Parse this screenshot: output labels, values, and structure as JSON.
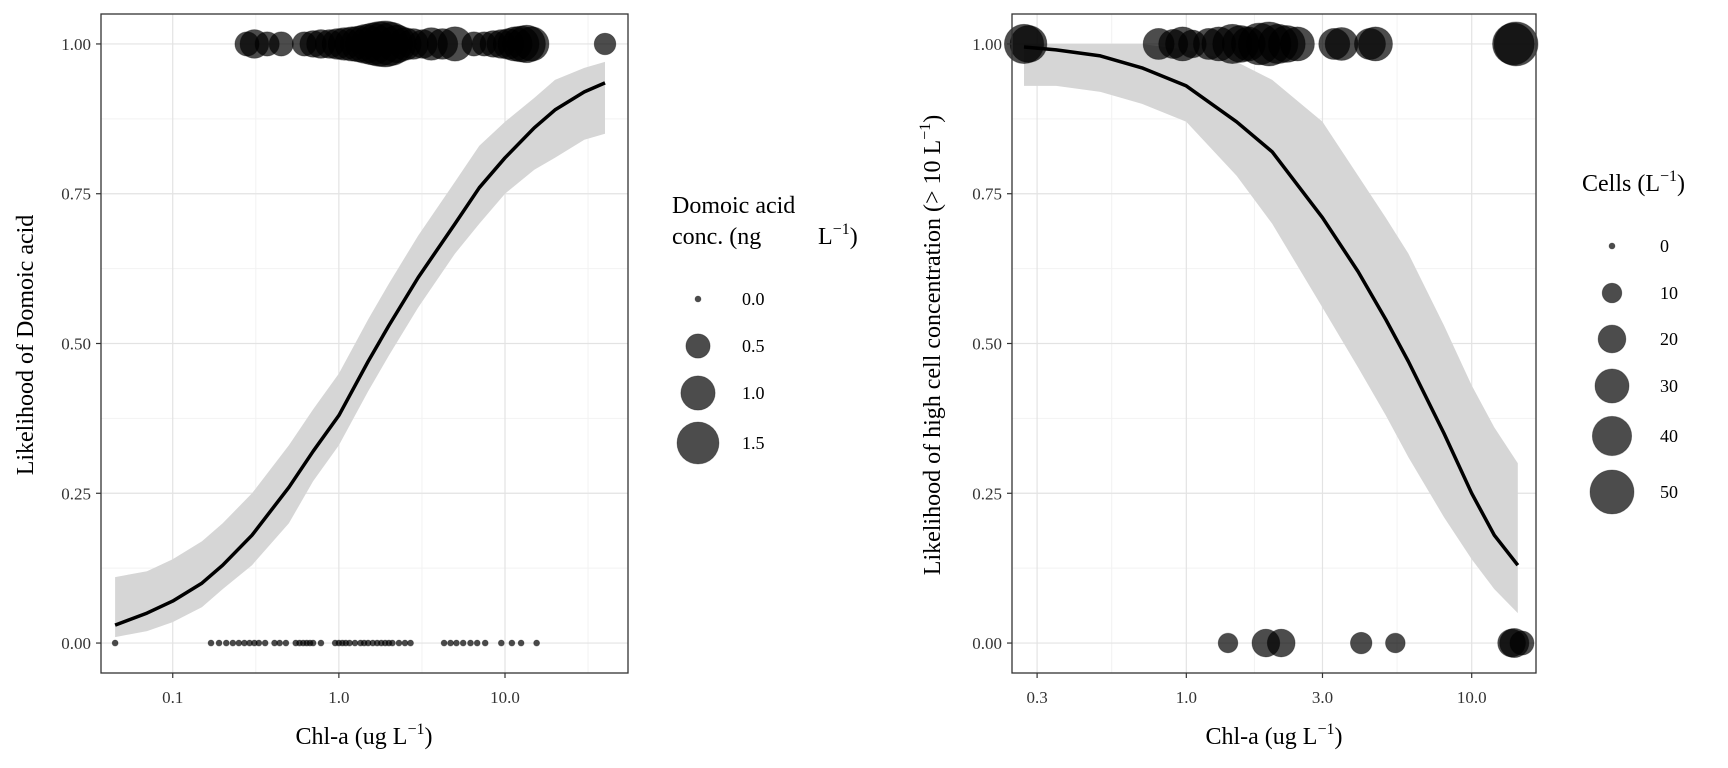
{
  "chart_data": [
    {
      "type": "scatter",
      "title": "",
      "xlabel": "Chl-a (ug L",
      "xlabel_sup": "−1",
      "xlabel_close": ")",
      "ylabel": "Likelihood of Domoic acid",
      "x_scale": "log10",
      "xlim": [
        0.037,
        55
      ],
      "ylim": [
        -0.05,
        1.05
      ],
      "x_ticks": [
        {
          "value": 0.1,
          "label": "0.1"
        },
        {
          "value": 1.0,
          "label": "1.0"
        },
        {
          "value": 10.0,
          "label": "10.0"
        }
      ],
      "y_ticks": [
        {
          "value": 0.0,
          "label": "0.00"
        },
        {
          "value": 0.25,
          "label": "0.25"
        },
        {
          "value": 0.5,
          "label": "0.50"
        },
        {
          "value": 0.75,
          "label": "0.75"
        },
        {
          "value": 1.0,
          "label": "1.00"
        }
      ],
      "grid": true,
      "fit_curve": {
        "x": [
          0.045,
          0.07,
          0.1,
          0.15,
          0.2,
          0.3,
          0.5,
          0.7,
          1.0,
          1.5,
          2.0,
          3.0,
          5.0,
          7.0,
          10.0,
          15.0,
          20.0,
          30.0,
          40.0
        ],
        "y": [
          0.03,
          0.05,
          0.07,
          0.1,
          0.13,
          0.18,
          0.26,
          0.32,
          0.38,
          0.47,
          0.53,
          0.61,
          0.7,
          0.76,
          0.81,
          0.86,
          0.89,
          0.92,
          0.935
        ],
        "lower": [
          0.01,
          0.02,
          0.035,
          0.06,
          0.09,
          0.13,
          0.2,
          0.27,
          0.33,
          0.42,
          0.48,
          0.56,
          0.65,
          0.7,
          0.75,
          0.79,
          0.81,
          0.84,
          0.85
        ],
        "upper": [
          0.11,
          0.12,
          0.14,
          0.17,
          0.2,
          0.25,
          0.33,
          0.39,
          0.45,
          0.54,
          0.6,
          0.68,
          0.77,
          0.83,
          0.87,
          0.91,
          0.94,
          0.96,
          0.97
        ]
      },
      "points": [
        {
          "x": 0.28,
          "y": 1,
          "size": 0.5
        },
        {
          "x": 0.31,
          "y": 1,
          "size": 0.7
        },
        {
          "x": 0.37,
          "y": 1,
          "size": 0.5
        },
        {
          "x": 0.45,
          "y": 1,
          "size": 0.5
        },
        {
          "x": 0.62,
          "y": 1,
          "size": 0.5
        },
        {
          "x": 0.7,
          "y": 1,
          "size": 0.6
        },
        {
          "x": 0.78,
          "y": 1,
          "size": 0.7
        },
        {
          "x": 0.88,
          "y": 1,
          "size": 0.7
        },
        {
          "x": 0.98,
          "y": 1,
          "size": 0.8
        },
        {
          "x": 1.08,
          "y": 1,
          "size": 0.9
        },
        {
          "x": 1.2,
          "y": 1,
          "size": 1.0
        },
        {
          "x": 1.32,
          "y": 1,
          "size": 1.1
        },
        {
          "x": 1.45,
          "y": 1,
          "size": 1.3
        },
        {
          "x": 1.6,
          "y": 1,
          "size": 1.5
        },
        {
          "x": 1.75,
          "y": 1,
          "size": 1.7
        },
        {
          "x": 1.9,
          "y": 1,
          "size": 1.8
        },
        {
          "x": 2.05,
          "y": 1,
          "size": 1.6
        },
        {
          "x": 2.25,
          "y": 1,
          "size": 1.2
        },
        {
          "x": 2.5,
          "y": 1,
          "size": 0.9
        },
        {
          "x": 2.8,
          "y": 1,
          "size": 0.8
        },
        {
          "x": 3.2,
          "y": 1,
          "size": 0.7
        },
        {
          "x": 3.6,
          "y": 1,
          "size": 0.9
        },
        {
          "x": 4.2,
          "y": 1,
          "size": 0.8
        },
        {
          "x": 5.0,
          "y": 1,
          "size": 1.0
        },
        {
          "x": 6.5,
          "y": 1,
          "size": 0.5
        },
        {
          "x": 7.5,
          "y": 1,
          "size": 0.5
        },
        {
          "x": 8.5,
          "y": 1,
          "size": 0.6
        },
        {
          "x": 9.5,
          "y": 1,
          "size": 0.7
        },
        {
          "x": 10.5,
          "y": 1,
          "size": 0.8
        },
        {
          "x": 11.5,
          "y": 1,
          "size": 1.0
        },
        {
          "x": 12.5,
          "y": 1,
          "size": 1.1
        },
        {
          "x": 13.5,
          "y": 1,
          "size": 1.2
        },
        {
          "x": 14.5,
          "y": 1,
          "size": 1.0
        },
        {
          "x": 40.0,
          "y": 1,
          "size": 0.4
        },
        {
          "x": 0.045,
          "y": 0,
          "size": 0
        },
        {
          "x": 0.17,
          "y": 0,
          "size": 0
        },
        {
          "x": 0.19,
          "y": 0,
          "size": 0
        },
        {
          "x": 0.21,
          "y": 0,
          "size": 0
        },
        {
          "x": 0.23,
          "y": 0,
          "size": 0
        },
        {
          "x": 0.25,
          "y": 0,
          "size": 0
        },
        {
          "x": 0.27,
          "y": 0,
          "size": 0
        },
        {
          "x": 0.29,
          "y": 0,
          "size": 0
        },
        {
          "x": 0.31,
          "y": 0,
          "size": 0
        },
        {
          "x": 0.33,
          "y": 0,
          "size": 0
        },
        {
          "x": 0.36,
          "y": 0,
          "size": 0
        },
        {
          "x": 0.41,
          "y": 0,
          "size": 0
        },
        {
          "x": 0.44,
          "y": 0,
          "size": 0
        },
        {
          "x": 0.48,
          "y": 0,
          "size": 0
        },
        {
          "x": 0.55,
          "y": 0,
          "size": 0
        },
        {
          "x": 0.58,
          "y": 0,
          "size": 0
        },
        {
          "x": 0.61,
          "y": 0,
          "size": 0
        },
        {
          "x": 0.64,
          "y": 0,
          "size": 0
        },
        {
          "x": 0.67,
          "y": 0,
          "size": 0
        },
        {
          "x": 0.7,
          "y": 0,
          "size": 0
        },
        {
          "x": 0.78,
          "y": 0,
          "size": 0
        },
        {
          "x": 0.95,
          "y": 0,
          "size": 0
        },
        {
          "x": 1.0,
          "y": 0,
          "size": 0
        },
        {
          "x": 1.05,
          "y": 0,
          "size": 0
        },
        {
          "x": 1.1,
          "y": 0,
          "size": 0
        },
        {
          "x": 1.16,
          "y": 0,
          "size": 0
        },
        {
          "x": 1.25,
          "y": 0,
          "size": 0
        },
        {
          "x": 1.35,
          "y": 0,
          "size": 0
        },
        {
          "x": 1.42,
          "y": 0,
          "size": 0
        },
        {
          "x": 1.5,
          "y": 0,
          "size": 0
        },
        {
          "x": 1.6,
          "y": 0,
          "size": 0
        },
        {
          "x": 1.7,
          "y": 0,
          "size": 0
        },
        {
          "x": 1.8,
          "y": 0,
          "size": 0
        },
        {
          "x": 1.9,
          "y": 0,
          "size": 0
        },
        {
          "x": 2.0,
          "y": 0,
          "size": 0
        },
        {
          "x": 2.1,
          "y": 0,
          "size": 0
        },
        {
          "x": 2.3,
          "y": 0,
          "size": 0
        },
        {
          "x": 2.5,
          "y": 0,
          "size": 0
        },
        {
          "x": 2.7,
          "y": 0,
          "size": 0
        },
        {
          "x": 4.3,
          "y": 0,
          "size": 0
        },
        {
          "x": 4.7,
          "y": 0,
          "size": 0
        },
        {
          "x": 5.1,
          "y": 0,
          "size": 0
        },
        {
          "x": 5.6,
          "y": 0,
          "size": 0
        },
        {
          "x": 6.2,
          "y": 0,
          "size": 0
        },
        {
          "x": 6.8,
          "y": 0,
          "size": 0
        },
        {
          "x": 7.6,
          "y": 0,
          "size": 0
        },
        {
          "x": 9.5,
          "y": 0,
          "size": 0
        },
        {
          "x": 11.0,
          "y": 0,
          "size": 0
        },
        {
          "x": 12.5,
          "y": 0,
          "size": 0
        },
        {
          "x": 15.5,
          "y": 0,
          "size": 0
        }
      ],
      "legend": {
        "title_lines": [
          "Domoic acid",
          "conc. (ng"
        ],
        "title_unit": "L",
        "title_unit_sup": "−1",
        "title_unit_close": ")",
        "entries": [
          {
            "label": "0.0",
            "value": 0.0
          },
          {
            "label": "0.5",
            "value": 0.5
          },
          {
            "label": "1.0",
            "value": 1.0
          },
          {
            "label": "1.5",
            "value": 1.5
          }
        ],
        "placement": "right"
      }
    },
    {
      "type": "scatter",
      "title": "",
      "xlabel": "Chl-a (ug L",
      "xlabel_sup": "−1",
      "xlabel_close": ")",
      "ylabel": "Likelihood of high cell concentration (> 10 L",
      "ylabel_sup": "−1",
      "ylabel_close": ")",
      "x_scale": "log10",
      "xlim": [
        0.245,
        16.8
      ],
      "ylim": [
        -0.05,
        1.05
      ],
      "x_ticks": [
        {
          "value": 0.3,
          "label": "0.3"
        },
        {
          "value": 1.0,
          "label": "1.0"
        },
        {
          "value": 3.0,
          "label": "3.0"
        },
        {
          "value": 10.0,
          "label": "10.0"
        }
      ],
      "y_ticks": [
        {
          "value": 0.0,
          "label": "0.00"
        },
        {
          "value": 0.25,
          "label": "0.25"
        },
        {
          "value": 0.5,
          "label": "0.50"
        },
        {
          "value": 0.75,
          "label": "0.75"
        },
        {
          "value": 1.0,
          "label": "1.00"
        }
      ],
      "grid": true,
      "fit_curve": {
        "x": [
          0.27,
          0.35,
          0.5,
          0.7,
          1.0,
          1.5,
          2.0,
          3.0,
          4.0,
          5.0,
          6.0,
          8.0,
          10.0,
          12.0,
          14.5
        ],
        "y": [
          0.995,
          0.99,
          0.98,
          0.96,
          0.93,
          0.87,
          0.82,
          0.71,
          0.62,
          0.54,
          0.47,
          0.35,
          0.25,
          0.18,
          0.13
        ],
        "lower": [
          0.93,
          0.93,
          0.92,
          0.9,
          0.87,
          0.78,
          0.7,
          0.56,
          0.46,
          0.38,
          0.31,
          0.21,
          0.14,
          0.09,
          0.05
        ],
        "upper": [
          1.0,
          1.0,
          1.0,
          1.0,
          0.99,
          0.97,
          0.94,
          0.87,
          0.78,
          0.71,
          0.65,
          0.53,
          0.43,
          0.36,
          0.3
        ]
      },
      "points": [
        {
          "x": 0.27,
          "y": 1,
          "size": 40
        },
        {
          "x": 0.28,
          "y": 1,
          "size": 35
        },
        {
          "x": 0.8,
          "y": 1,
          "size": 25
        },
        {
          "x": 0.9,
          "y": 1,
          "size": 22
        },
        {
          "x": 0.97,
          "y": 1,
          "size": 30
        },
        {
          "x": 1.05,
          "y": 1,
          "size": 20
        },
        {
          "x": 1.2,
          "y": 1,
          "size": 25
        },
        {
          "x": 1.3,
          "y": 1,
          "size": 30
        },
        {
          "x": 1.45,
          "y": 1,
          "size": 40
        },
        {
          "x": 1.55,
          "y": 1,
          "size": 35
        },
        {
          "x": 1.65,
          "y": 1,
          "size": 30
        },
        {
          "x": 1.8,
          "y": 1,
          "size": 45
        },
        {
          "x": 1.95,
          "y": 1,
          "size": 50
        },
        {
          "x": 2.1,
          "y": 1,
          "size": 40
        },
        {
          "x": 2.25,
          "y": 1,
          "size": 35
        },
        {
          "x": 2.45,
          "y": 1,
          "size": 30
        },
        {
          "x": 3.3,
          "y": 1,
          "size": 25
        },
        {
          "x": 3.5,
          "y": 1,
          "size": 28
        },
        {
          "x": 4.4,
          "y": 1,
          "size": 25
        },
        {
          "x": 4.6,
          "y": 1,
          "size": 30
        },
        {
          "x": 14.0,
          "y": 1,
          "size": 45
        },
        {
          "x": 14.3,
          "y": 1,
          "size": 50
        },
        {
          "x": 1.4,
          "y": 0,
          "size": 10
        },
        {
          "x": 1.9,
          "y": 0,
          "size": 20
        },
        {
          "x": 2.15,
          "y": 0,
          "size": 20
        },
        {
          "x": 4.1,
          "y": 0,
          "size": 12
        },
        {
          "x": 5.4,
          "y": 0,
          "size": 10
        },
        {
          "x": 13.8,
          "y": 0,
          "size": 20
        },
        {
          "x": 14.1,
          "y": 0,
          "size": 22
        },
        {
          "x": 15.0,
          "y": 0,
          "size": 15
        }
      ],
      "legend": {
        "title_lines": [
          "Cells (L"
        ],
        "title_unit_sup": "−1",
        "title_unit_close": ")",
        "entries": [
          {
            "label": "0",
            "value": 0
          },
          {
            "label": "10",
            "value": 10
          },
          {
            "label": "20",
            "value": 20
          },
          {
            "label": "30",
            "value": 30
          },
          {
            "label": "40",
            "value": 40
          },
          {
            "label": "50",
            "value": 50
          }
        ],
        "placement": "right"
      }
    }
  ]
}
